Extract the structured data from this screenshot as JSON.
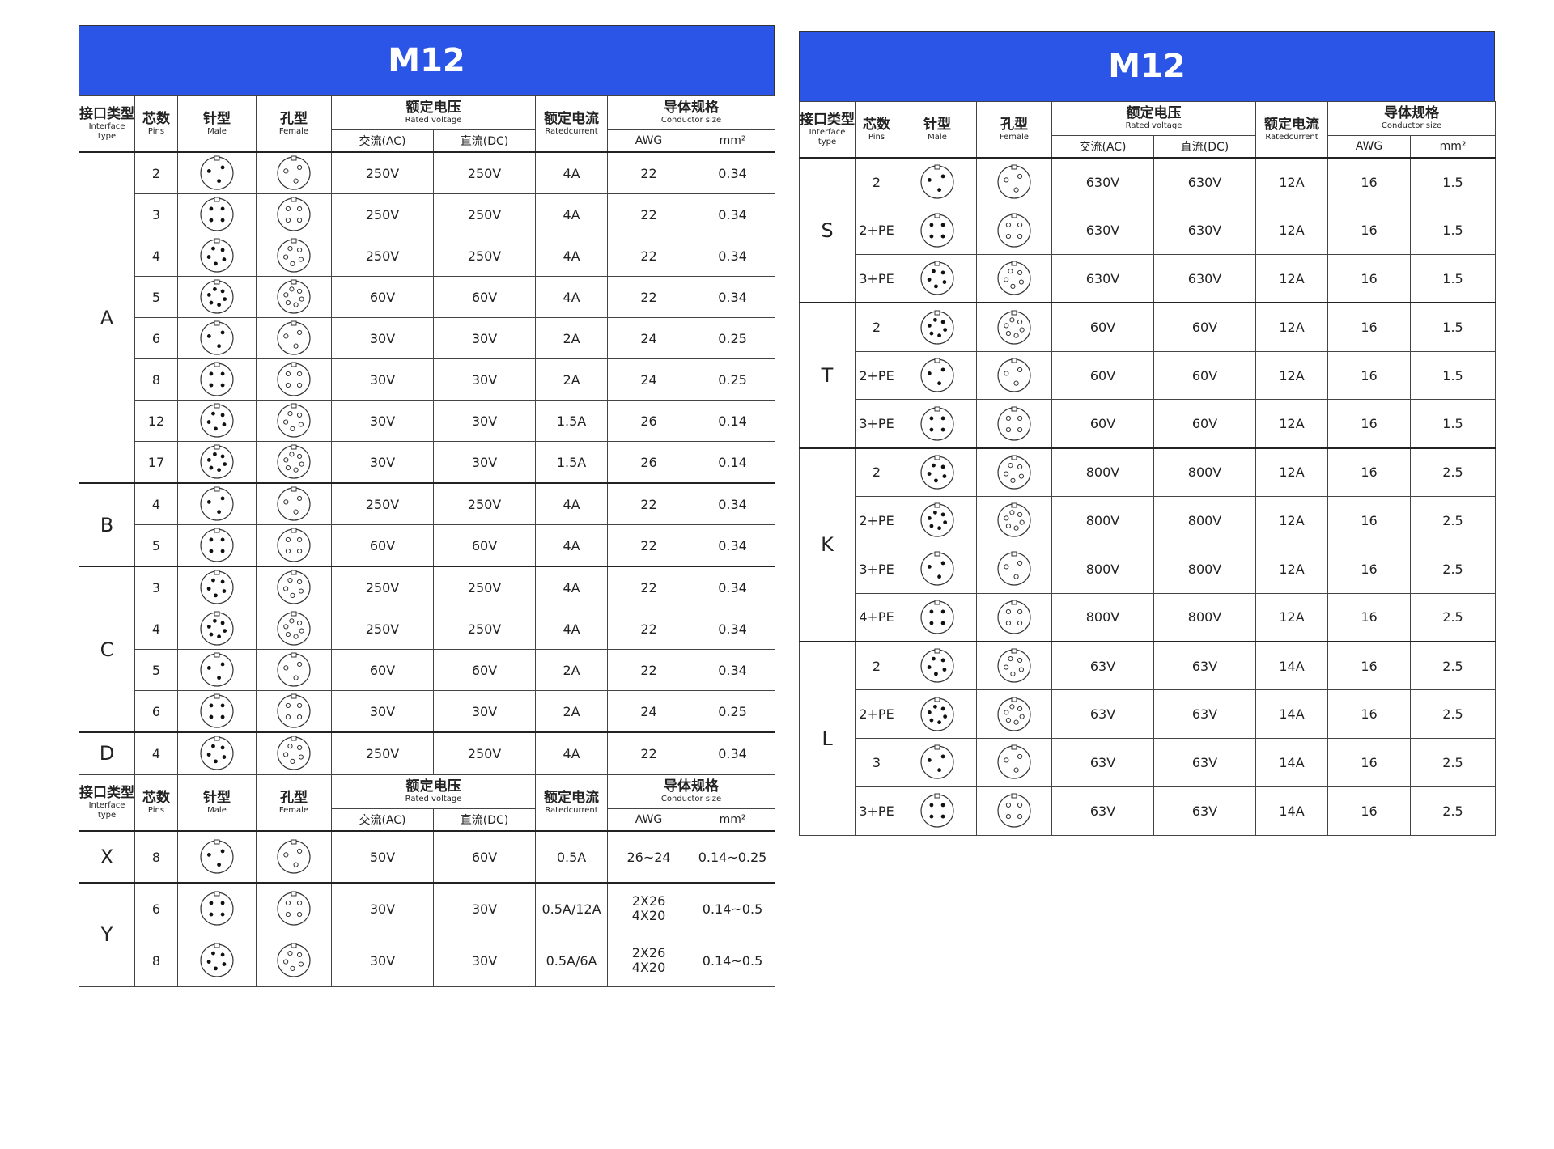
{
  "left": {
    "title": "M12",
    "header": {
      "type_cn": "接口类型",
      "type_en": "Interface type",
      "pins_cn": "芯数",
      "pins_en": "Pins",
      "male_cn": "针型",
      "male_en": "Male",
      "female_cn": "孔型",
      "female_en": "Female",
      "voltage_cn": "额定电压",
      "voltage_en": "Rated voltage",
      "ac": "交流(AC)",
      "dc": "直流(DC)",
      "current_cn": "额定电流",
      "current_en": "Ratedcurrent",
      "conductor_cn": "导体规格",
      "conductor_en": "Conductor size",
      "awg": "AWG",
      "mm2": "mm²"
    },
    "groups": [
      {
        "type": "A",
        "rows": [
          [
            "2",
            "250V",
            "250V",
            "4A",
            "22",
            "0.34"
          ],
          [
            "3",
            "250V",
            "250V",
            "4A",
            "22",
            "0.34"
          ],
          [
            "4",
            "250V",
            "250V",
            "4A",
            "22",
            "0.34"
          ],
          [
            "5",
            "60V",
            "60V",
            "4A",
            "22",
            "0.34"
          ],
          [
            "6",
            "30V",
            "30V",
            "2A",
            "24",
            "0.25"
          ],
          [
            "8",
            "30V",
            "30V",
            "2A",
            "24",
            "0.25"
          ],
          [
            "12",
            "30V",
            "30V",
            "1.5A",
            "26",
            "0.14"
          ],
          [
            "17",
            "30V",
            "30V",
            "1.5A",
            "26",
            "0.14"
          ]
        ]
      },
      {
        "type": "B",
        "rows": [
          [
            "4",
            "250V",
            "250V",
            "4A",
            "22",
            "0.34"
          ],
          [
            "5",
            "60V",
            "60V",
            "4A",
            "22",
            "0.34"
          ]
        ]
      },
      {
        "type": "C",
        "rows": [
          [
            "3",
            "250V",
            "250V",
            "4A",
            "22",
            "0.34"
          ],
          [
            "4",
            "250V",
            "250V",
            "4A",
            "22",
            "0.34"
          ],
          [
            "5",
            "60V",
            "60V",
            "2A",
            "22",
            "0.34"
          ],
          [
            "6",
            "30V",
            "30V",
            "2A",
            "24",
            "0.25"
          ]
        ]
      },
      {
        "type": "D",
        "rows": [
          [
            "4",
            "250V",
            "250V",
            "4A",
            "22",
            "0.34"
          ]
        ]
      }
    ]
  },
  "left_lower": {
    "header": {
      "type_cn": "接口类型",
      "type_en": "Interface type",
      "pins_cn": "芯数",
      "pins_en": "Pins",
      "male_cn": "针型",
      "male_en": "Male",
      "female_cn": "孔型",
      "female_en": "Female",
      "voltage_cn": "额定电压",
      "voltage_en": "Rated voltage",
      "ac": "交流(AC)",
      "dc": "直流(DC)",
      "current_cn": "额定电流",
      "current_en": "Ratedcurrent",
      "conductor_cn": "导体规格",
      "conductor_en": "Conductor size",
      "awg": "AWG",
      "mm2": "mm²"
    },
    "groups": [
      {
        "type": "X",
        "rows": [
          [
            "8",
            "50V",
            "60V",
            "0.5A",
            "26~24",
            "0.14~0.25"
          ]
        ]
      },
      {
        "type": "Y",
        "rows": [
          [
            "6",
            "30V",
            "30V",
            "0.5A/12A",
            [
              "2X26",
              "4X20"
            ],
            "0.14~0.5"
          ],
          [
            "8",
            "30V",
            "30V",
            "0.5A/6A",
            [
              "2X26",
              "4X20"
            ],
            "0.14~0.5"
          ]
        ]
      }
    ]
  },
  "right": {
    "title": "M12",
    "header": {
      "type_cn": "接口类型",
      "type_en": "Interface type",
      "pins_cn": "芯数",
      "pins_en": "Pins",
      "male_cn": "针型",
      "male_en": "Male",
      "female_cn": "孔型",
      "female_en": "Female",
      "voltage_cn": "额定电压",
      "voltage_en": "Rated voltage",
      "ac": "交流(AC)",
      "dc": "直流(DC)",
      "current_cn": "额定电流",
      "current_en": "Ratedcurrent",
      "conductor_cn": "导体规格",
      "conductor_en": "Conductor size",
      "awg": "AWG",
      "mm2": "mm²"
    },
    "groups": [
      {
        "type": "S",
        "rows": [
          [
            "2",
            "630V",
            "630V",
            "12A",
            "16",
            "1.5"
          ],
          [
            "2+PE",
            "630V",
            "630V",
            "12A",
            "16",
            "1.5"
          ],
          [
            "3+PE",
            "630V",
            "630V",
            "12A",
            "16",
            "1.5"
          ]
        ]
      },
      {
        "type": "T",
        "rows": [
          [
            "2",
            "60V",
            "60V",
            "12A",
            "16",
            "1.5"
          ],
          [
            "2+PE",
            "60V",
            "60V",
            "12A",
            "16",
            "1.5"
          ],
          [
            "3+PE",
            "60V",
            "60V",
            "12A",
            "16",
            "1.5"
          ]
        ]
      },
      {
        "type": "K",
        "rows": [
          [
            "2",
            "800V",
            "800V",
            "12A",
            "16",
            "2.5"
          ],
          [
            "2+PE",
            "800V",
            "800V",
            "12A",
            "16",
            "2.5"
          ],
          [
            "3+PE",
            "800V",
            "800V",
            "12A",
            "16",
            "2.5"
          ],
          [
            "4+PE",
            "800V",
            "800V",
            "12A",
            "16",
            "2.5"
          ]
        ]
      },
      {
        "type": "L",
        "rows": [
          [
            "2",
            "63V",
            "63V",
            "14A",
            "16",
            "2.5"
          ],
          [
            "2+PE",
            "63V",
            "63V",
            "14A",
            "16",
            "2.5"
          ],
          [
            "3",
            "63V",
            "63V",
            "14A",
            "16",
            "2.5"
          ],
          [
            "3+PE",
            "63V",
            "63V",
            "14A",
            "16",
            "2.5"
          ]
        ]
      }
    ]
  }
}
